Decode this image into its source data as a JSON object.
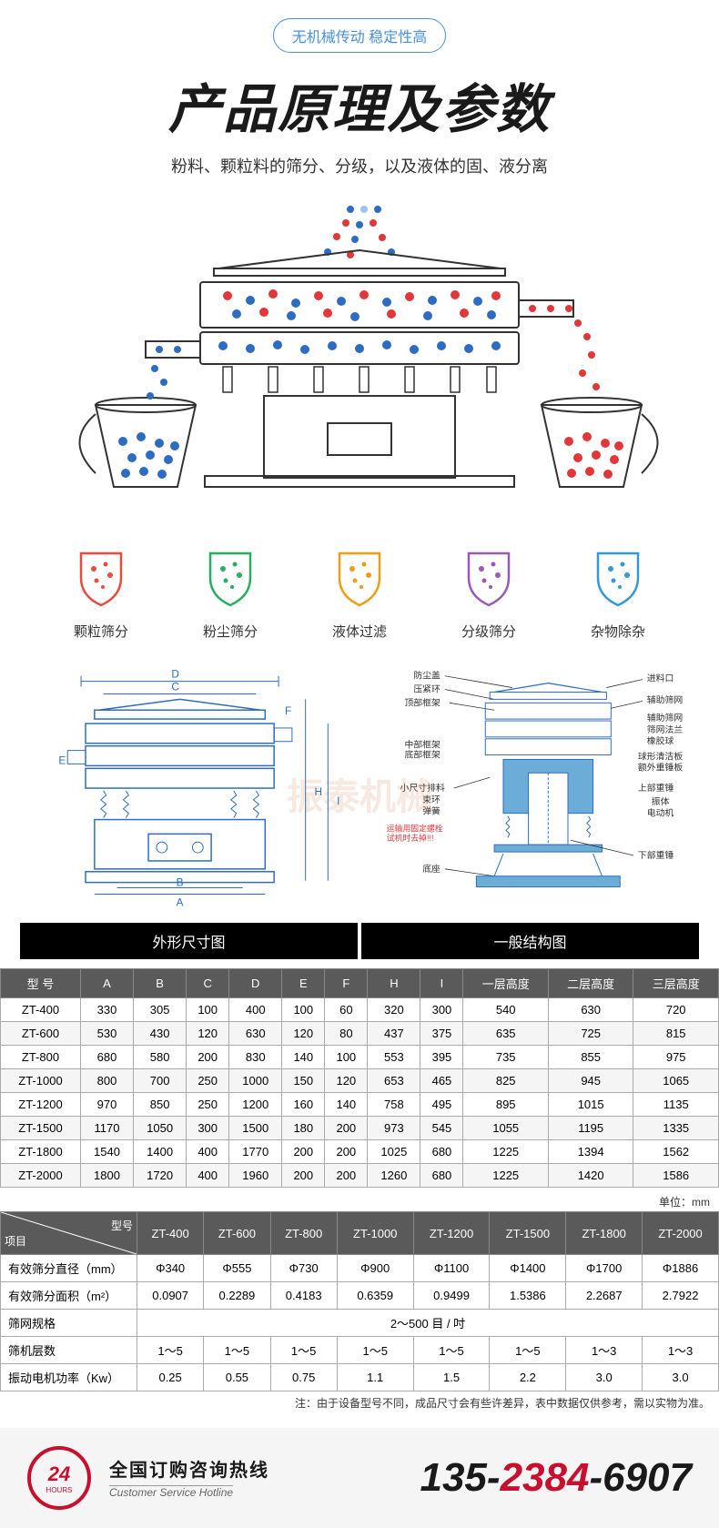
{
  "banner": {
    "pill": "无机械传动 稳定性高",
    "title": "产品原理及参数",
    "subtitle": "粉料、颗粒料的筛分、分级，以及液体的固、液分离"
  },
  "features": [
    {
      "label": "颗粒筛分",
      "color": "#e74c3c"
    },
    {
      "label": "粉尘筛分",
      "color": "#27ae60"
    },
    {
      "label": "液体过滤",
      "color": "#f39c12"
    },
    {
      "label": "分级筛分",
      "color": "#9b59b6"
    },
    {
      "label": "杂物除杂",
      "color": "#3498db"
    }
  ],
  "diagram_labels": {
    "left": "外形尺寸图",
    "right": "一般结构图"
  },
  "structure_parts": {
    "left_labels": [
      "A",
      "B",
      "C",
      "D",
      "E",
      "F",
      "H",
      "I"
    ],
    "right_labels": [
      "防尘盖",
      "压紧环",
      "顶部框架",
      "中部框架",
      "底部框架",
      "小尺寸排料",
      "束环",
      "弹簧",
      "运输用固定螺栓试机时去掉!!!",
      "底座",
      "进料口",
      "辅助筛网",
      "辅助筛网",
      "筛网法兰",
      "橡胶球",
      "球形清洁板",
      "额外重锤板",
      "上部重锤",
      "振体",
      "电动机",
      "下部重锤"
    ]
  },
  "watermark": "振泰机械",
  "spec_table": {
    "headers": [
      "型 号",
      "A",
      "B",
      "C",
      "D",
      "E",
      "F",
      "H",
      "I",
      "一层高度",
      "二层高度",
      "三层高度"
    ],
    "rows": [
      [
        "ZT-400",
        "330",
        "305",
        "100",
        "400",
        "100",
        "60",
        "320",
        "300",
        "540",
        "630",
        "720"
      ],
      [
        "ZT-600",
        "530",
        "430",
        "120",
        "630",
        "120",
        "80",
        "437",
        "375",
        "635",
        "725",
        "815"
      ],
      [
        "ZT-800",
        "680",
        "580",
        "200",
        "830",
        "140",
        "100",
        "553",
        "395",
        "735",
        "855",
        "975"
      ],
      [
        "ZT-1000",
        "800",
        "700",
        "250",
        "1000",
        "150",
        "120",
        "653",
        "465",
        "825",
        "945",
        "1065"
      ],
      [
        "ZT-1200",
        "970",
        "850",
        "250",
        "1200",
        "160",
        "140",
        "758",
        "495",
        "895",
        "1015",
        "1135"
      ],
      [
        "ZT-1500",
        "1170",
        "1050",
        "300",
        "1500",
        "180",
        "200",
        "973",
        "545",
        "1055",
        "1195",
        "1335"
      ],
      [
        "ZT-1800",
        "1540",
        "1400",
        "400",
        "1770",
        "200",
        "200",
        "1025",
        "680",
        "1225",
        "1394",
        "1562"
      ],
      [
        "ZT-2000",
        "1800",
        "1720",
        "400",
        "1960",
        "200",
        "200",
        "1260",
        "680",
        "1225",
        "1420",
        "1586"
      ]
    ],
    "unit": "单位：mm"
  },
  "param_table": {
    "corner_left": "项目",
    "corner_right": "型号",
    "headers": [
      "ZT-400",
      "ZT-600",
      "ZT-800",
      "ZT-1000",
      "ZT-1200",
      "ZT-1500",
      "ZT-1800",
      "ZT-2000"
    ],
    "rows": [
      {
        "label": "有效筛分直径（mm）",
        "cells": [
          "Φ340",
          "Φ555",
          "Φ730",
          "Φ900",
          "Φ1100",
          "Φ1400",
          "Φ1700",
          "Φ1886"
        ]
      },
      {
        "label": "有效筛分面积（m²）",
        "cells": [
          "0.0907",
          "0.2289",
          "0.4183",
          "0.6359",
          "0.9499",
          "1.5386",
          "2.2687",
          "2.7922"
        ]
      },
      {
        "label": "筛网规格",
        "span": "2～500 目 / 吋"
      },
      {
        "label": "筛机层数",
        "cells": [
          "1～5",
          "1～5",
          "1～5",
          "1～5",
          "1～5",
          "1～5",
          "1～3",
          "1～3"
        ]
      },
      {
        "label": "振动电机功率（Kw）",
        "cells": [
          "0.25",
          "0.55",
          "0.75",
          "1.1",
          "1.5",
          "2.2",
          "3.0",
          "3.0"
        ]
      }
    ],
    "note": "注：由于设备型号不同，成品尺寸会有些许差异，表中数据仅供参考，需以实物为准。"
  },
  "hotline": {
    "icon24": "24",
    "iconHours": "HOURS",
    "cn": "全国订购咨询热线",
    "en": "Customer Service Hotline",
    "number": {
      "p1": "135-",
      "p2": "2384",
      "p3": "-6907"
    }
  },
  "colors": {
    "blue": "#2d6cc0",
    "red": "#e03838",
    "gray": "#666",
    "darkgray": "#5a5a5a"
  }
}
